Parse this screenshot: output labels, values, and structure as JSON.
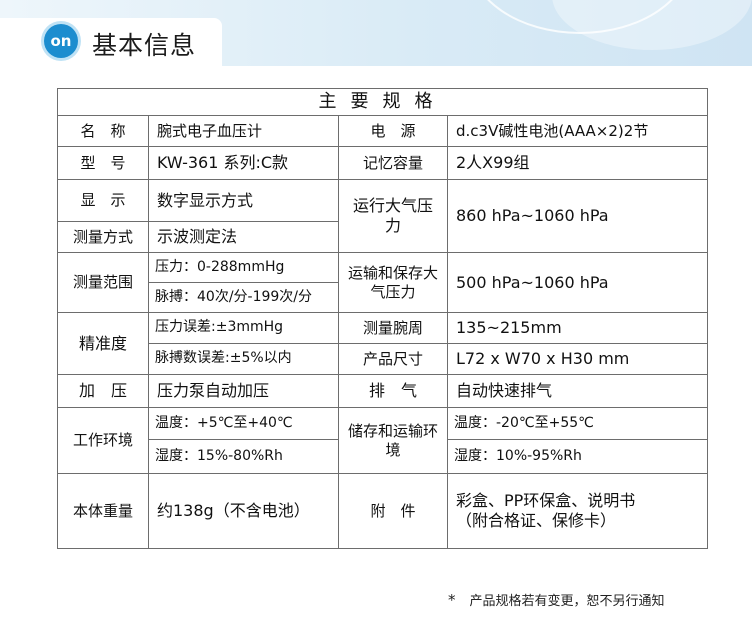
{
  "header": {
    "logo_text": "on",
    "title": "基本信息"
  },
  "table": {
    "heading": "主要规格",
    "name_label": "名　称",
    "name_value": "腕式电子血压计",
    "power_label": "电　源",
    "power_value": "d.c3V碱性电池(AAA×2)2节",
    "model_label": "型　号",
    "model_value": "KW-361 系列:C款",
    "memory_label": "记忆容量",
    "memory_value": "2人X99组",
    "display_label": "显　示",
    "display_value": "数字显示方式",
    "op_pressure_label": "运行大气压力",
    "op_pressure_value": "860 hPa~1060 hPa",
    "method_label": "测量方式",
    "method_value": "示波测定法",
    "range_label": "测量范围",
    "range_pressure": "压力：0-288mmHg",
    "range_pulse": "脉搏：40次/分-199次/分",
    "transport_pressure_label": "运输和保存大气压力",
    "transport_pressure_value": "500 hPa~1060 hPa",
    "accuracy_label": "精准度",
    "accuracy_pressure": "压力误差:±3mmHg",
    "accuracy_pulse": "脉搏数误差:±5%以内",
    "wrist_label": "测量腕周",
    "wrist_value": "135~215mm",
    "size_label": "产品尺寸",
    "size_value": "L72 x W70 x H30 mm",
    "inflate_label": "加　压",
    "inflate_value": "压力泵自动加压",
    "exhaust_label": "排　气",
    "exhaust_value": "自动快速排气",
    "work_env_label": "工作环境",
    "work_temp": "温度：+5℃至+40℃",
    "work_humidity": "湿度：15%-80%Rh",
    "storage_env_label": "储存和运输环境",
    "storage_temp": "温度：-20℃至+55℃",
    "storage_humidity": "湿度：10%-95%Rh",
    "weight_label": "本体重量",
    "weight_value": "约138g（不含电池）",
    "accessories_label": "附　件",
    "accessories_line1": "彩盒、PP环保盒、说明书",
    "accessories_line2": "（附合格证、保修卡）"
  },
  "footnote": {
    "star": "*",
    "text": "产品规格若有变更，恕不另行通知"
  }
}
